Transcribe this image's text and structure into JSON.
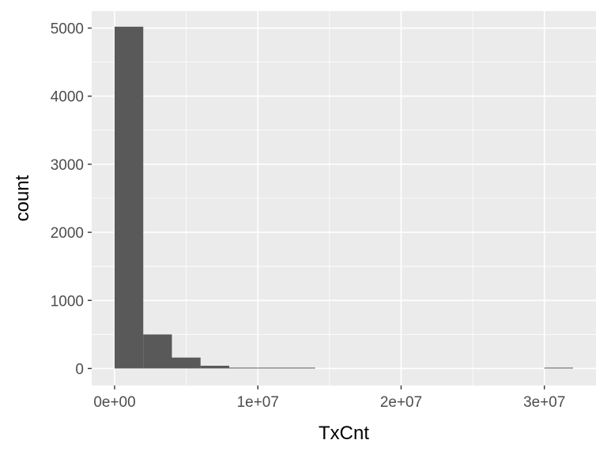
{
  "chart_data": {
    "type": "bar",
    "subtype": "histogram",
    "xlabel": "TxCnt",
    "ylabel": "count",
    "x_ticks": [
      {
        "value": 0,
        "label": "0e+00"
      },
      {
        "value": 10000000,
        "label": "1e+07"
      },
      {
        "value": 20000000,
        "label": "2e+07"
      },
      {
        "value": 30000000,
        "label": "3e+07"
      }
    ],
    "y_ticks": [
      {
        "value": 0,
        "label": "0"
      },
      {
        "value": 1000,
        "label": "1000"
      },
      {
        "value": 2000,
        "label": "2000"
      },
      {
        "value": 3000,
        "label": "3000"
      },
      {
        "value": 4000,
        "label": "4000"
      },
      {
        "value": 5000,
        "label": "5000"
      }
    ],
    "xlim": [
      -1600000,
      33600000
    ],
    "ylim": [
      -250,
      5250
    ],
    "bins": [
      {
        "x0": 0,
        "x1": 2000000,
        "count": 5020
      },
      {
        "x0": 2000000,
        "x1": 4000000,
        "count": 500
      },
      {
        "x0": 4000000,
        "x1": 6000000,
        "count": 160
      },
      {
        "x0": 6000000,
        "x1": 8000000,
        "count": 40
      },
      {
        "x0": 8000000,
        "x1": 10000000,
        "count": 10
      },
      {
        "x0": 10000000,
        "x1": 12000000,
        "count": 3
      },
      {
        "x0": 12000000,
        "x1": 14000000,
        "count": 1
      },
      {
        "x0": 14000000,
        "x1": 16000000,
        "count": 0
      },
      {
        "x0": 16000000,
        "x1": 18000000,
        "count": 0
      },
      {
        "x0": 18000000,
        "x1": 20000000,
        "count": 0
      },
      {
        "x0": 20000000,
        "x1": 22000000,
        "count": 0
      },
      {
        "x0": 22000000,
        "x1": 24000000,
        "count": 0
      },
      {
        "x0": 24000000,
        "x1": 26000000,
        "count": 0
      },
      {
        "x0": 26000000,
        "x1": 28000000,
        "count": 0
      },
      {
        "x0": 28000000,
        "x1": 30000000,
        "count": 0
      },
      {
        "x0": 30000000,
        "x1": 32000000,
        "count": 1
      }
    ],
    "grid": true,
    "legend": "none",
    "colors": {
      "panel": "#ebebeb",
      "grid": "#ffffff",
      "bar": "#595959",
      "tick": "#333333"
    }
  }
}
